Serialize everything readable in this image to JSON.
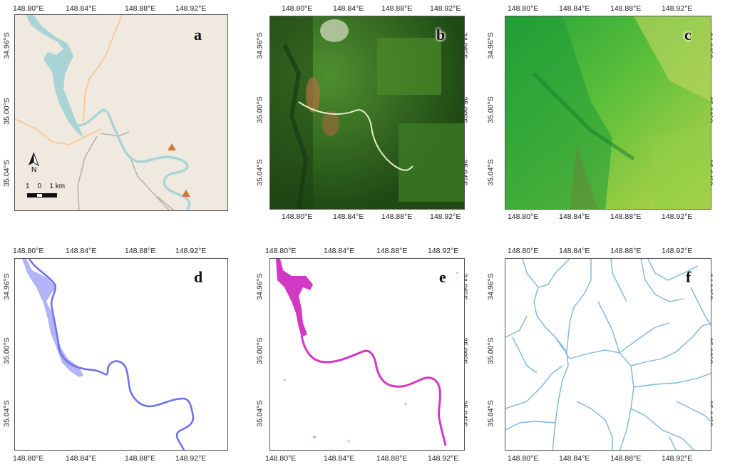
{
  "figure": {
    "top_ticks_x": [
      "148.80°E",
      "148.84°E",
      "148.88°E",
      "148.92°E"
    ],
    "ticks_y": [
      "34.96°S",
      "35.00°S",
      "35.04°S"
    ],
    "panels": [
      {
        "label": "a",
        "content": "reference map with river, roads and triangle markers"
      },
      {
        "label": "b",
        "content": "true colour satellite image"
      },
      {
        "label": "c",
        "content": "hillshaded elevation"
      },
      {
        "label": "d",
        "content": "river channel mask (blue)"
      },
      {
        "label": "e",
        "content": "water classification (magenta)"
      },
      {
        "label": "f",
        "content": "drainage network"
      }
    ]
  },
  "legend": {
    "north_label": "N",
    "scale_label": "1    0    1 km"
  },
  "colors": {
    "map_bg": "#efe9df",
    "river_fill": "#a9d4d6",
    "roads_orange": "#f8c892",
    "roads_grey": "#b9b2ab",
    "marker": "#cf7a3b",
    "panel_d": "#8a8cf5",
    "panel_e": "#d238c4",
    "panel_f": "#7bb6dc"
  }
}
